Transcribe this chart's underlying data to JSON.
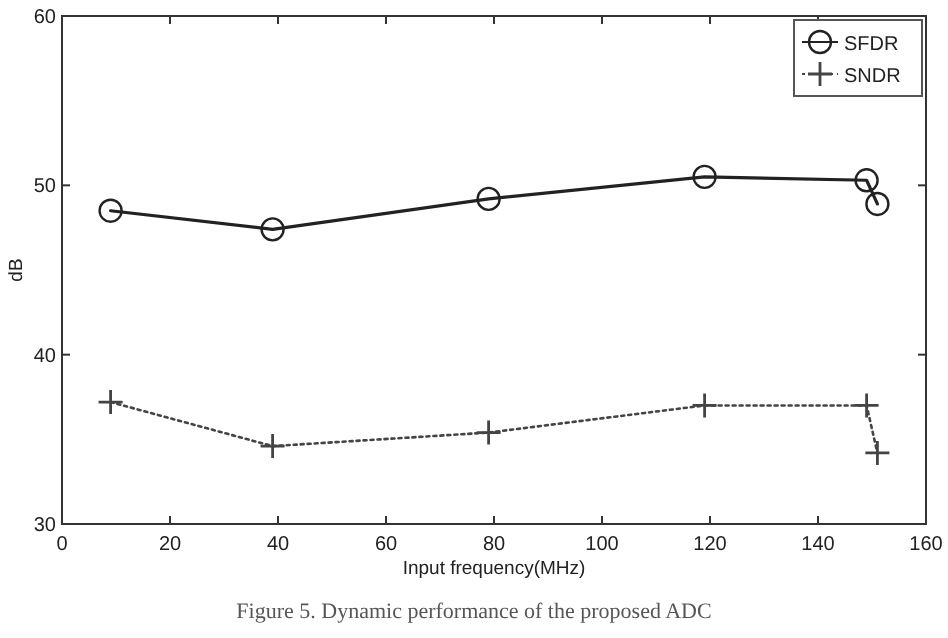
{
  "chart_data": {
    "type": "line",
    "xlabel": "Input frequency(MHz)",
    "ylabel": "dB",
    "x": [
      9,
      39,
      79,
      119,
      149,
      151
    ],
    "series": [
      {
        "name": "SFDR",
        "color": "#222222",
        "marker": "circle",
        "line_style": "solid",
        "values": [
          48.5,
          47.4,
          49.2,
          50.5,
          50.3,
          48.9
        ]
      },
      {
        "name": "SNDR",
        "color": "#444444",
        "marker": "cross",
        "line_style": "dotted",
        "values": [
          37.2,
          34.6,
          35.4,
          37.0,
          37.0,
          34.2
        ]
      }
    ],
    "xlim": [
      0,
      160
    ],
    "xticks": [
      0,
      20,
      40,
      60,
      80,
      100,
      120,
      140,
      160
    ],
    "ylim": [
      30,
      60
    ],
    "yticks": [
      30,
      40,
      50,
      60
    ],
    "grid": false,
    "legend": "top right",
    "annotations": [
      "Figure 5. Dynamic performance of the proposed ADC"
    ]
  }
}
